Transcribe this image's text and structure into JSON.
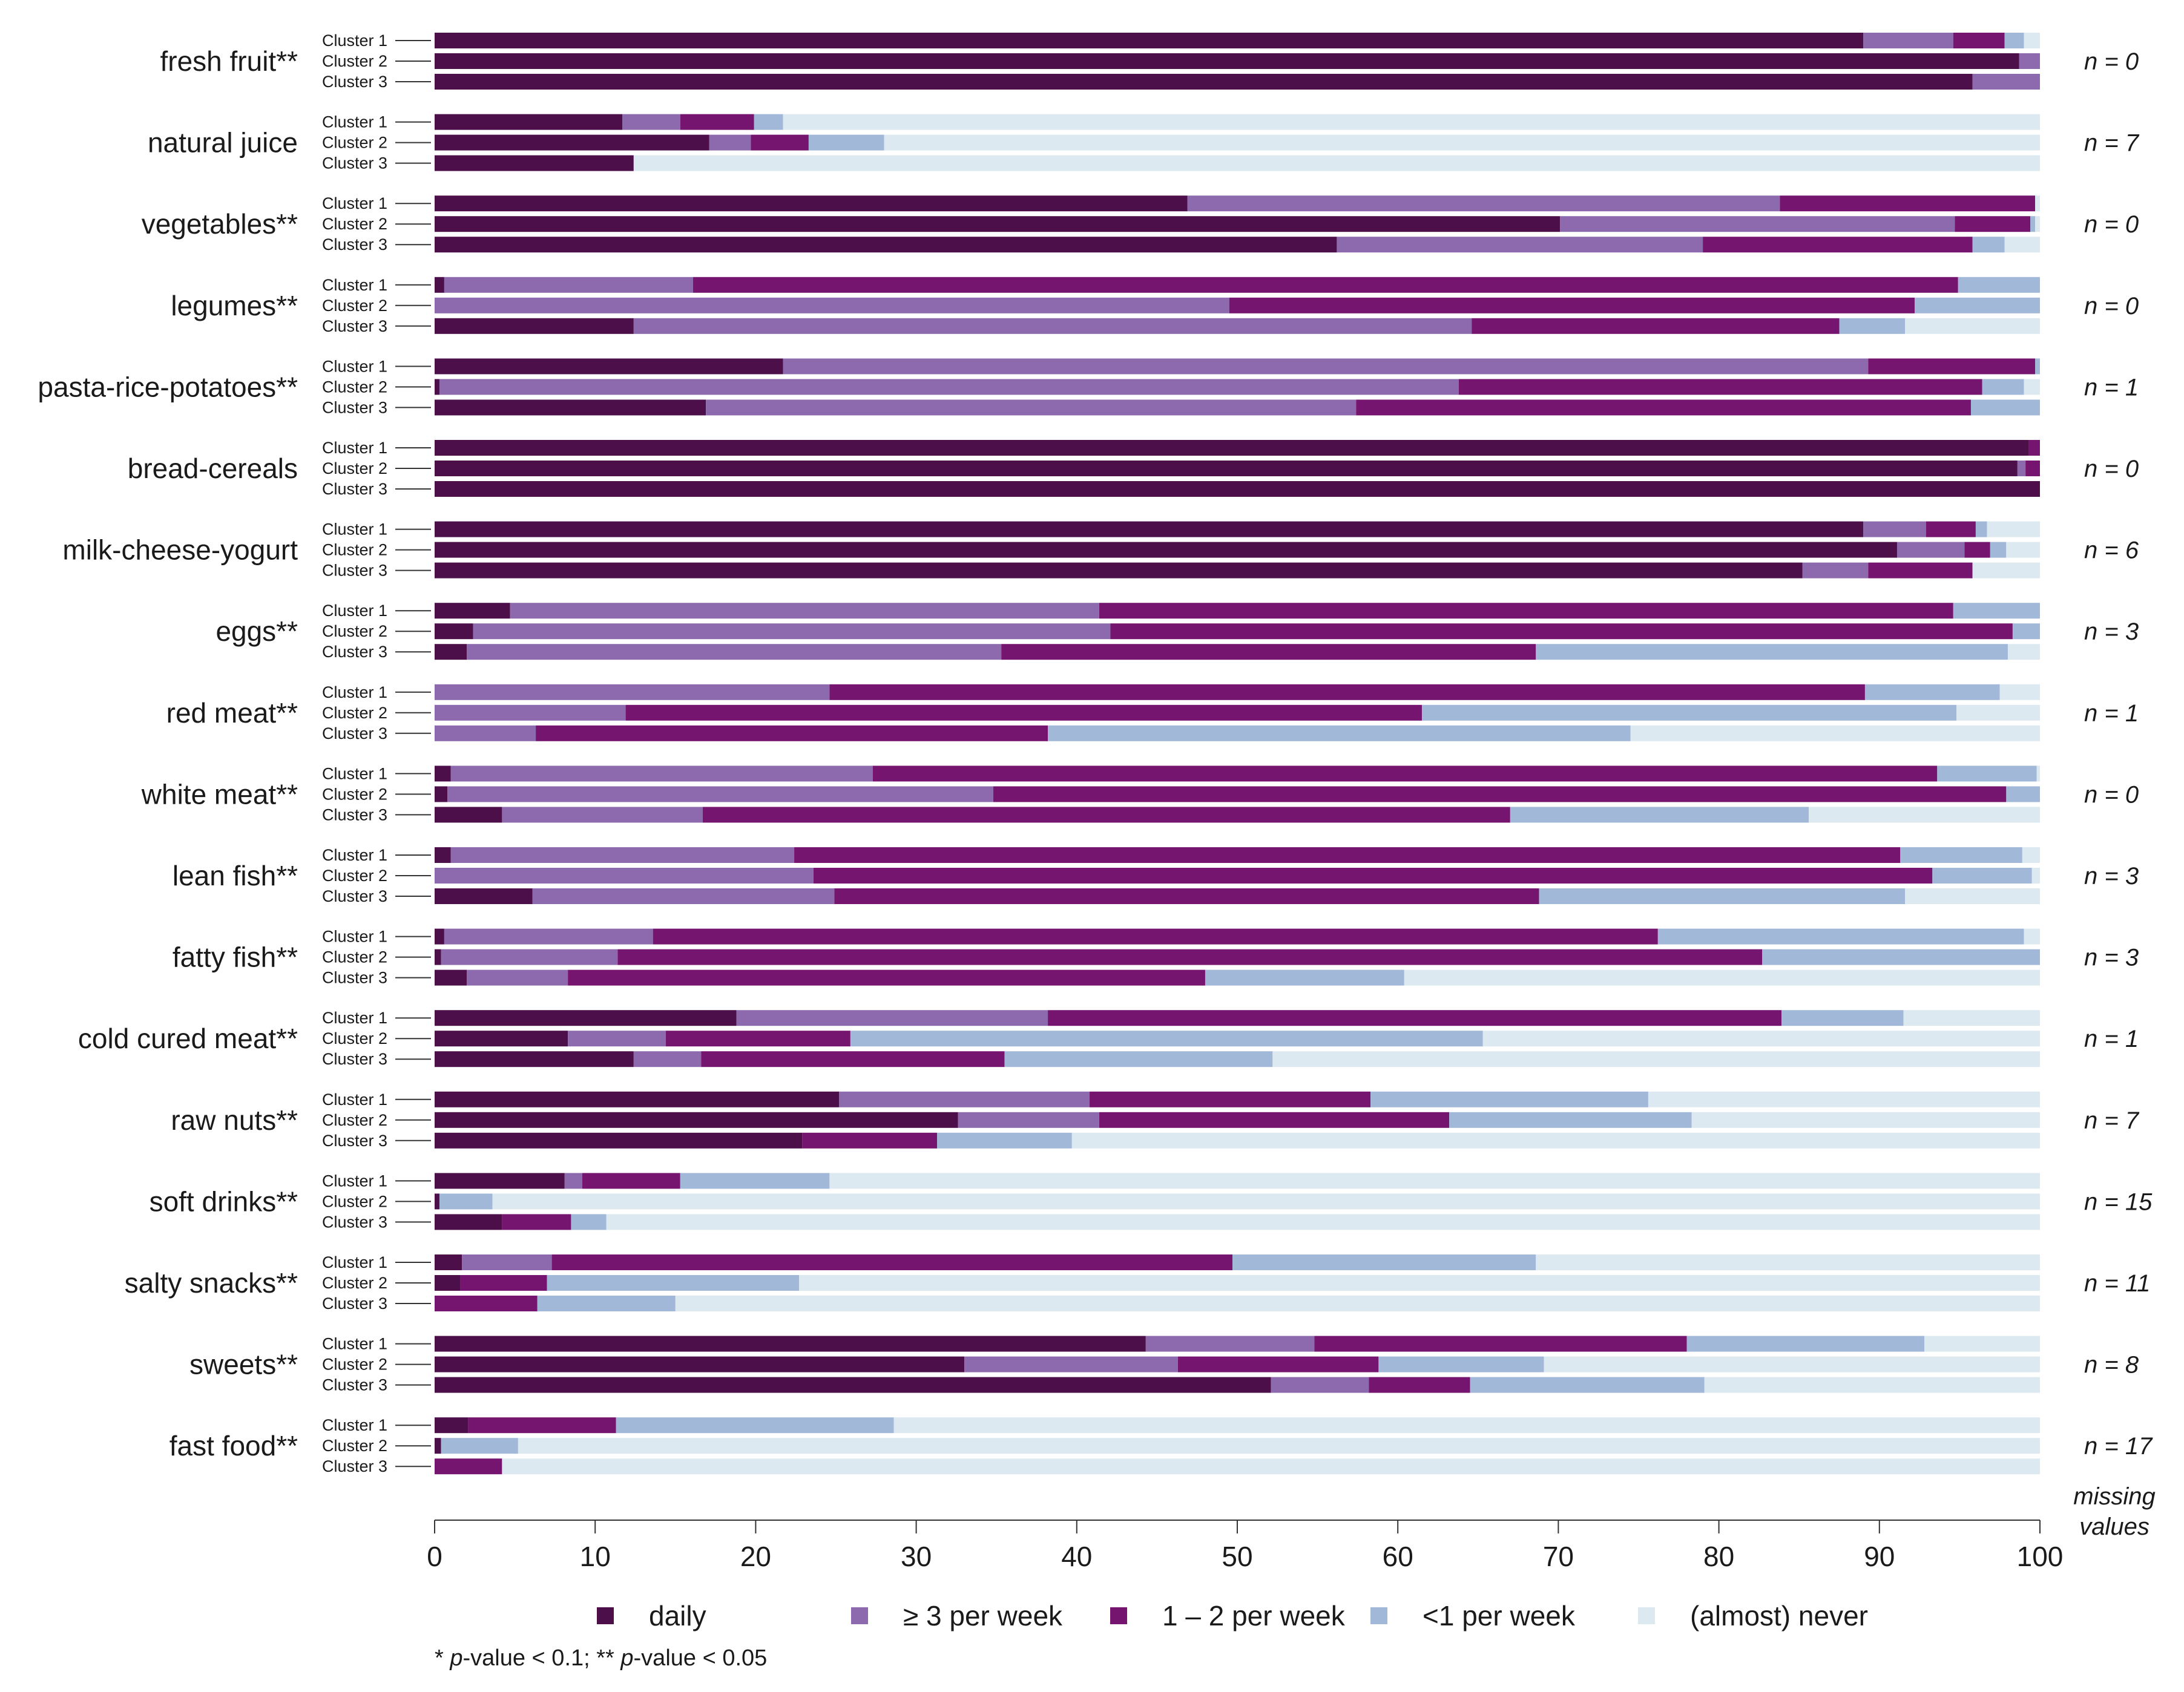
{
  "chart_data": {
    "type": "bar",
    "orientation": "horizontal-stacked-percent",
    "xlim": [
      0,
      100
    ],
    "x_ticks": [
      0,
      10,
      20,
      30,
      40,
      50,
      60,
      70,
      80,
      90,
      100
    ],
    "cluster_labels": [
      "Cluster 1",
      "Cluster 2",
      "Cluster 3"
    ],
    "series_names": [
      "daily",
      "≥ 3 per week",
      "1 – 2 per week",
      "<1 per week",
      "(almost) never"
    ],
    "colors": [
      "#4c0f4a",
      "#8c6aad",
      "#76156f",
      "#a1b8d8",
      "#dde9f1"
    ],
    "missing_prefix": "n = ",
    "missing_label_line1": "missing",
    "missing_label_line2": "values",
    "footnote_parts": [
      "* ",
      "p",
      "-value < 0.1; ** ",
      "p",
      "-value < 0.05"
    ],
    "categories": [
      {
        "name": "fresh fruit**",
        "missing": 0,
        "clusters": [
          [
            89,
            5.6,
            3.2,
            1.2,
            1.0
          ],
          [
            98.7,
            1.3,
            0,
            0,
            0
          ],
          [
            95.8,
            4.2,
            0,
            0,
            0
          ]
        ]
      },
      {
        "name": "natural juice",
        "missing": 7,
        "clusters": [
          [
            11.7,
            3.6,
            4.6,
            1.8,
            78.3
          ],
          [
            17.1,
            2.6,
            3.6,
            4.7,
            72.0
          ],
          [
            12.4,
            0,
            0,
            0,
            87.6
          ]
        ]
      },
      {
        "name": "vegetables**",
        "missing": 0,
        "clusters": [
          [
            46.9,
            36.9,
            15.9,
            0,
            0.3
          ],
          [
            70.1,
            24.6,
            4.7,
            0.3,
            0.3
          ],
          [
            56.2,
            22.8,
            16.8,
            2.0,
            2.2
          ]
        ]
      },
      {
        "name": "legumes**",
        "missing": 0,
        "clusters": [
          [
            0.6,
            15.5,
            78.8,
            5.1,
            0
          ],
          [
            0,
            49.5,
            42.7,
            7.8,
            0
          ],
          [
            12.4,
            52.2,
            22.9,
            4.1,
            8.4
          ]
        ]
      },
      {
        "name": "pasta-rice-potatoes**",
        "missing": 1,
        "clusters": [
          [
            21.7,
            67.6,
            10.4,
            0.3,
            0
          ],
          [
            0.3,
            63.5,
            32.6,
            2.6,
            1.0
          ],
          [
            16.9,
            40.5,
            38.3,
            4.3,
            0
          ]
        ]
      },
      {
        "name": "bread-cereals",
        "missing": 0,
        "clusters": [
          [
            99.3,
            0,
            0.7,
            0,
            0
          ],
          [
            98.6,
            0.5,
            0.9,
            0,
            0
          ],
          [
            100,
            0,
            0,
            0,
            0
          ]
        ]
      },
      {
        "name": "milk-cheese-yogurt",
        "missing": 6,
        "clusters": [
          [
            89,
            3.9,
            3.1,
            0.7,
            3.3
          ],
          [
            91.1,
            4.2,
            1.6,
            1.0,
            2.1
          ],
          [
            85.2,
            4.1,
            6.5,
            0,
            4.2
          ]
        ]
      },
      {
        "name": "eggs**",
        "missing": 3,
        "clusters": [
          [
            4.7,
            36.7,
            53.2,
            5.4,
            0
          ],
          [
            2.4,
            39.7,
            56.2,
            1.7,
            0
          ],
          [
            2.0,
            33.3,
            33.3,
            29.4,
            2.0
          ]
        ]
      },
      {
        "name": "red meat**",
        "missing": 1,
        "clusters": [
          [
            0,
            24.6,
            64.5,
            8.4,
            2.5
          ],
          [
            0,
            11.9,
            49.6,
            33.3,
            5.2
          ],
          [
            0,
            6.3,
            31.9,
            36.3,
            25.5
          ]
        ]
      },
      {
        "name": "white meat**",
        "missing": 0,
        "clusters": [
          [
            1.0,
            26.3,
            66.3,
            6.2,
            0.2
          ],
          [
            0.8,
            34.0,
            63.1,
            2.1,
            0
          ],
          [
            4.2,
            12.5,
            50.3,
            18.6,
            14.4
          ]
        ]
      },
      {
        "name": "lean fish**",
        "missing": 3,
        "clusters": [
          [
            1.0,
            21.4,
            68.9,
            7.6,
            1.1
          ],
          [
            0,
            23.6,
            69.7,
            6.2,
            0.5
          ],
          [
            6.1,
            18.8,
            43.9,
            22.8,
            8.4
          ]
        ]
      },
      {
        "name": "fatty fish**",
        "missing": 3,
        "clusters": [
          [
            0.6,
            13.0,
            62.6,
            22.8,
            1.0
          ],
          [
            0.4,
            11.0,
            71.3,
            17.3,
            0
          ],
          [
            2.0,
            6.3,
            39.7,
            12.4,
            39.6
          ]
        ]
      },
      {
        "name": "cold cured meat**",
        "missing": 1,
        "clusters": [
          [
            18.8,
            19.4,
            45.7,
            7.6,
            8.5
          ],
          [
            8.3,
            6.1,
            11.5,
            39.4,
            34.7
          ],
          [
            12.4,
            4.2,
            18.9,
            16.7,
            47.8
          ]
        ]
      },
      {
        "name": "raw nuts**",
        "missing": 7,
        "clusters": [
          [
            25.2,
            15.6,
            17.5,
            17.3,
            24.4
          ],
          [
            32.6,
            8.8,
            21.8,
            15.1,
            21.7
          ],
          [
            22.9,
            0,
            8.4,
            8.4,
            60.3
          ]
        ]
      },
      {
        "name": "soft drinks**",
        "missing": 15,
        "clusters": [
          [
            8.1,
            1.1,
            6.1,
            9.3,
            75.4
          ],
          [
            0.3,
            0,
            0,
            3.3,
            96.4
          ],
          [
            4.2,
            0,
            4.3,
            2.2,
            89.3
          ]
        ]
      },
      {
        "name": "salty snacks**",
        "missing": 11,
        "clusters": [
          [
            1.7,
            5.6,
            42.4,
            18.9,
            31.4
          ],
          [
            1.6,
            0,
            5.4,
            15.7,
            77.3
          ],
          [
            0,
            0,
            6.4,
            8.6,
            85.0
          ]
        ]
      },
      {
        "name": "sweets**",
        "missing": 8,
        "clusters": [
          [
            44.3,
            10.5,
            23.2,
            14.8,
            7.2
          ],
          [
            33.0,
            13.3,
            12.5,
            10.3,
            30.9
          ],
          [
            52.1,
            6.1,
            6.3,
            14.6,
            20.9
          ]
        ]
      },
      {
        "name": "fast food**",
        "missing": 17,
        "clusters": [
          [
            2.1,
            0,
            9.2,
            17.3,
            71.4
          ],
          [
            0.4,
            0,
            0,
            4.8,
            94.8
          ],
          [
            0,
            0,
            4.2,
            0,
            95.8
          ]
        ]
      }
    ]
  }
}
